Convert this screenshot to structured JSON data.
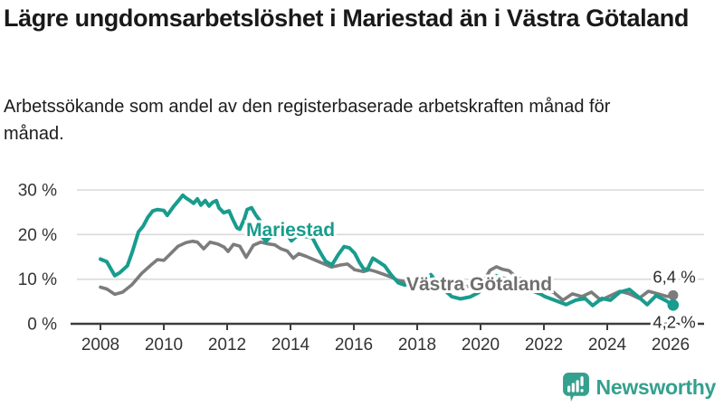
{
  "header": {
    "title": "Lägre ungdomsarbetslöshet i Mariestad än i Västra Götaland",
    "subtitle": "Arbetssökande som andel av den registerbaserade arbetskraften månad för månad."
  },
  "branding": {
    "logo_text": "Newsworthy",
    "logo_icon": "speech-bubble-bar-chart-icon",
    "brand_color": "#35a08e"
  },
  "chart_data": {
    "type": "line",
    "title": "Lägre ungdomsarbetslöshet i Mariestad än i Västra Götaland",
    "xlabel": "",
    "ylabel": "",
    "x_unit": "year (monthly data)",
    "xlim": [
      2007.9,
      2026.9
    ],
    "ylim": [
      0,
      30
    ],
    "grid": "horizontal",
    "legend_position": "inline-labels-on-lines",
    "x_ticks": [
      2008,
      2010,
      2012,
      2014,
      2016,
      2018,
      2020,
      2022,
      2024,
      2026
    ],
    "y_ticks": [
      {
        "value": 0,
        "label": "0 %"
      },
      {
        "value": 10,
        "label": "10 %"
      },
      {
        "value": 20,
        "label": "20 %"
      },
      {
        "value": 30,
        "label": "30 %"
      }
    ],
    "colors": {
      "mariestad": "#189c8d",
      "vastra_gotaland": "#7c7c7c",
      "grid": "#d9d9d9",
      "axis": "#3d3d3d",
      "tick_text": "#333333",
      "end_label_text": "#2b2b2b"
    },
    "series": [
      {
        "name": "Västra Götaland",
        "color": "#7c7c7c",
        "final_value": 6.4,
        "end_label": "6,4 %",
        "points": [
          [
            2008.0,
            8.2
          ],
          [
            2008.2,
            7.8
          ],
          [
            2008.45,
            6.6
          ],
          [
            2008.7,
            7.1
          ],
          [
            2009.0,
            8.8
          ],
          [
            2009.3,
            11.3
          ],
          [
            2009.6,
            13.2
          ],
          [
            2009.8,
            14.4
          ],
          [
            2010.0,
            14.2
          ],
          [
            2010.2,
            15.6
          ],
          [
            2010.45,
            17.4
          ],
          [
            2010.7,
            18.2
          ],
          [
            2010.9,
            18.5
          ],
          [
            2011.06,
            18.3
          ],
          [
            2011.26,
            16.8
          ],
          [
            2011.46,
            18.3
          ],
          [
            2011.7,
            17.9
          ],
          [
            2011.9,
            17.2
          ],
          [
            2012.03,
            16.2
          ],
          [
            2012.2,
            17.8
          ],
          [
            2012.4,
            17.4
          ],
          [
            2012.6,
            14.9
          ],
          [
            2012.83,
            17.6
          ],
          [
            2013.06,
            18.3
          ],
          [
            2013.3,
            17.9
          ],
          [
            2013.5,
            17.7
          ],
          [
            2013.7,
            16.8
          ],
          [
            2013.9,
            16.3
          ],
          [
            2014.09,
            14.7
          ],
          [
            2014.26,
            15.7
          ],
          [
            2014.5,
            15.1
          ],
          [
            2014.7,
            14.5
          ],
          [
            2014.9,
            13.9
          ],
          [
            2015.1,
            13.3
          ],
          [
            2015.3,
            12.7
          ],
          [
            2015.6,
            13.2
          ],
          [
            2015.8,
            13.4
          ],
          [
            2016.03,
            12.1
          ],
          [
            2016.3,
            11.7
          ],
          [
            2016.5,
            12.1
          ],
          [
            2016.7,
            11.7
          ],
          [
            2016.97,
            11.0
          ],
          [
            2017.2,
            10.4
          ],
          [
            2017.4,
            9.7
          ],
          [
            2017.7,
            9.4
          ],
          [
            2018.0,
            9.3
          ],
          [
            2018.3,
            9.0
          ],
          [
            2018.6,
            8.8
          ],
          [
            2019.0,
            8.6
          ],
          [
            2019.3,
            8.2
          ],
          [
            2019.6,
            8.4
          ],
          [
            2019.9,
            8.8
          ],
          [
            2020.1,
            9.6
          ],
          [
            2020.3,
            12.0
          ],
          [
            2020.5,
            12.8
          ],
          [
            2020.7,
            12.2
          ],
          [
            2020.9,
            11.9
          ],
          [
            2021.1,
            10.6
          ],
          [
            2021.4,
            9.6
          ],
          [
            2021.7,
            8.8
          ],
          [
            2022.0,
            7.8
          ],
          [
            2022.3,
            7.1
          ],
          [
            2022.6,
            5.3
          ],
          [
            2022.9,
            6.7
          ],
          [
            2023.2,
            6.1
          ],
          [
            2023.5,
            7.1
          ],
          [
            2023.8,
            5.3
          ],
          [
            2024.1,
            6.3
          ],
          [
            2024.4,
            7.3
          ],
          [
            2024.7,
            6.7
          ],
          [
            2025.0,
            5.7
          ],
          [
            2025.3,
            7.3
          ],
          [
            2025.6,
            6.7
          ],
          [
            2025.9,
            6.1
          ],
          [
            2026.08,
            6.4
          ]
        ]
      },
      {
        "name": "Mariestad",
        "color": "#189c8d",
        "final_value": 4.2,
        "end_label": "4,2 %",
        "points": [
          [
            2008.0,
            14.5
          ],
          [
            2008.2,
            13.9
          ],
          [
            2008.45,
            10.8
          ],
          [
            2008.6,
            11.4
          ],
          [
            2008.85,
            13.0
          ],
          [
            2009.0,
            16.0
          ],
          [
            2009.2,
            20.6
          ],
          [
            2009.35,
            21.9
          ],
          [
            2009.5,
            23.9
          ],
          [
            2009.65,
            25.3
          ],
          [
            2009.8,
            25.6
          ],
          [
            2010.0,
            25.4
          ],
          [
            2010.11,
            24.3
          ],
          [
            2010.3,
            26.2
          ],
          [
            2010.45,
            27.5
          ],
          [
            2010.6,
            28.8
          ],
          [
            2010.7,
            28.2
          ],
          [
            2010.83,
            27.6
          ],
          [
            2010.94,
            27.0
          ],
          [
            2011.06,
            28.0
          ],
          [
            2011.17,
            26.6
          ],
          [
            2011.31,
            27.6
          ],
          [
            2011.43,
            26.4
          ],
          [
            2011.54,
            27.2
          ],
          [
            2011.66,
            27.6
          ],
          [
            2011.74,
            26.0
          ],
          [
            2011.89,
            24.9
          ],
          [
            2012.06,
            25.3
          ],
          [
            2012.17,
            23.5
          ],
          [
            2012.31,
            21.5
          ],
          [
            2012.4,
            21.2
          ],
          [
            2012.54,
            23.5
          ],
          [
            2012.63,
            25.6
          ],
          [
            2012.77,
            26.0
          ],
          [
            2012.91,
            24.3
          ],
          [
            2013.06,
            22.9
          ],
          [
            2013.2,
            20.0
          ],
          [
            2013.29,
            19.3
          ],
          [
            2013.46,
            21.0
          ],
          [
            2013.6,
            21.8
          ],
          [
            2013.77,
            20.8
          ],
          [
            2013.91,
            19.8
          ],
          [
            2014.03,
            18.6
          ],
          [
            2014.17,
            19.5
          ],
          [
            2014.37,
            19.6
          ],
          [
            2014.54,
            19.5
          ],
          [
            2014.69,
            19.3
          ],
          [
            2014.83,
            17.4
          ],
          [
            2014.97,
            15.6
          ],
          [
            2015.11,
            14.0
          ],
          [
            2015.31,
            13.2
          ],
          [
            2015.51,
            15.5
          ],
          [
            2015.69,
            17.3
          ],
          [
            2015.86,
            17.0
          ],
          [
            2016.03,
            15.8
          ],
          [
            2016.17,
            13.8
          ],
          [
            2016.31,
            12.3
          ],
          [
            2016.43,
            12.2
          ],
          [
            2016.6,
            14.7
          ],
          [
            2016.8,
            13.8
          ],
          [
            2016.97,
            13.0
          ],
          [
            2017.17,
            11.0
          ],
          [
            2017.4,
            9.2
          ],
          [
            2017.6,
            8.7
          ],
          [
            2017.83,
            9.1
          ],
          [
            2018.03,
            8.6
          ],
          [
            2018.23,
            9.6
          ],
          [
            2018.43,
            11.0
          ],
          [
            2018.63,
            9.2
          ],
          [
            2018.86,
            7.6
          ],
          [
            2019.09,
            6.1
          ],
          [
            2019.37,
            5.6
          ],
          [
            2019.66,
            6.0
          ],
          [
            2019.94,
            7.0
          ],
          [
            2020.2,
            9.6
          ],
          [
            2020.49,
            10.8
          ],
          [
            2020.77,
            10.1
          ],
          [
            2021.06,
            9.2
          ],
          [
            2021.34,
            8.2
          ],
          [
            2021.63,
            7.4
          ],
          [
            2021.91,
            6.6
          ],
          [
            2022.03,
            6.1
          ],
          [
            2022.4,
            5.1
          ],
          [
            2022.7,
            4.3
          ],
          [
            2023.0,
            5.3
          ],
          [
            2023.3,
            5.7
          ],
          [
            2023.54,
            4.1
          ],
          [
            2023.83,
            5.7
          ],
          [
            2024.1,
            5.3
          ],
          [
            2024.4,
            7.1
          ],
          [
            2024.7,
            7.7
          ],
          [
            2024.97,
            6.1
          ],
          [
            2025.26,
            4.3
          ],
          [
            2025.54,
            6.3
          ],
          [
            2025.83,
            5.3
          ],
          [
            2026.08,
            4.2
          ]
        ]
      }
    ]
  }
}
